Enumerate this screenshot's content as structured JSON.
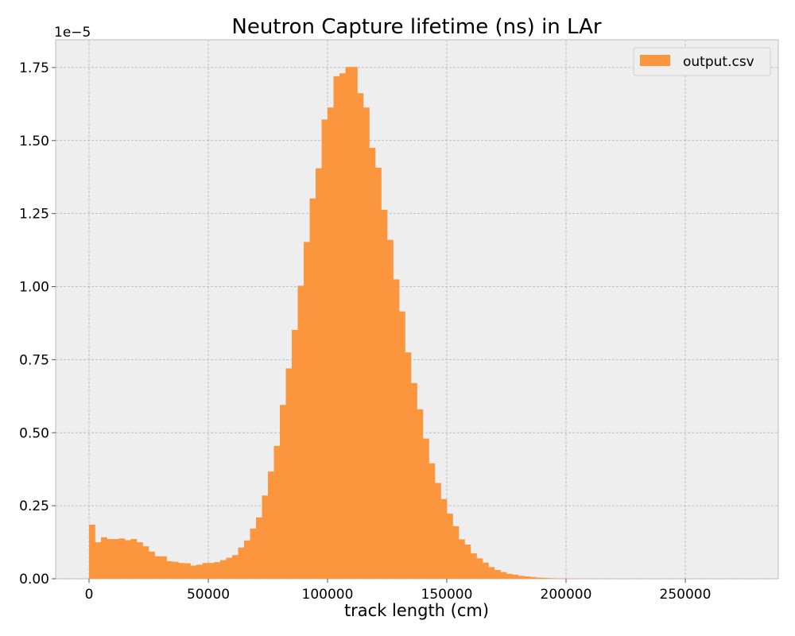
{
  "chart_data": {
    "type": "bar",
    "title": "Neutron Capture lifetime (ns) in LAr",
    "xlabel": "track length (cm)",
    "ylabel": "",
    "y_offset_label": "1e−5",
    "xlim": [
      -14000,
      289000
    ],
    "ylim": [
      0,
      1.845
    ],
    "x_ticks": [
      0,
      50000,
      100000,
      150000,
      200000,
      250000
    ],
    "x_tick_labels": [
      "0",
      "50000",
      "100000",
      "150000",
      "200000",
      "250000"
    ],
    "y_ticks": [
      0,
      0.25,
      0.5,
      0.75,
      1.0,
      1.25,
      1.5,
      1.75
    ],
    "y_tick_labels": [
      "0.00",
      "0.25",
      "0.50",
      "0.75",
      "1.00",
      "1.25",
      "1.50",
      "1.75"
    ],
    "grid": true,
    "legend_position": "top-right",
    "bin_start": 0,
    "bin_width": 2500,
    "series": [
      {
        "name": "output.csv",
        "color": "#fb963f",
        "values": [
          0.185,
          0.125,
          0.142,
          0.136,
          0.136,
          0.138,
          0.132,
          0.136,
          0.125,
          0.111,
          0.093,
          0.077,
          0.077,
          0.06,
          0.058,
          0.054,
          0.053,
          0.045,
          0.048,
          0.054,
          0.054,
          0.057,
          0.064,
          0.072,
          0.081,
          0.107,
          0.131,
          0.172,
          0.21,
          0.285,
          0.367,
          0.455,
          0.595,
          0.72,
          0.852,
          1.003,
          1.153,
          1.302,
          1.405,
          1.572,
          1.613,
          1.72,
          1.73,
          1.752,
          1.752,
          1.662,
          1.613,
          1.475,
          1.407,
          1.263,
          1.16,
          1.025,
          0.915,
          0.775,
          0.67,
          0.58,
          0.48,
          0.395,
          0.328,
          0.273,
          0.223,
          0.18,
          0.135,
          0.117,
          0.087,
          0.07,
          0.055,
          0.04,
          0.03,
          0.023,
          0.017,
          0.014,
          0.01,
          0.008,
          0.006,
          0.004,
          0.003,
          0.002,
          0.001,
          0.001,
          0.0005,
          0.0005,
          0.0003,
          0.0003,
          0.0002
        ]
      }
    ]
  }
}
